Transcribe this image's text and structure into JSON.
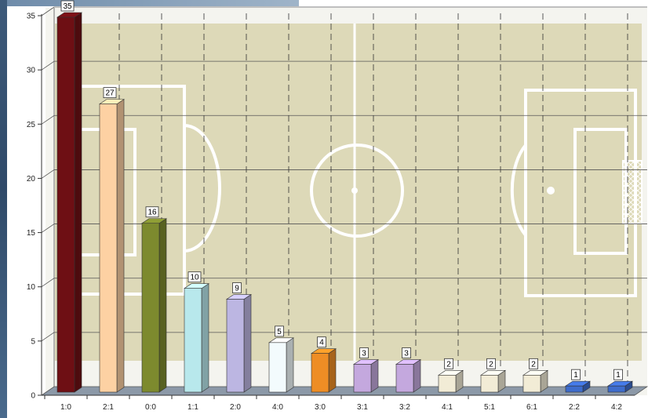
{
  "chart_data": {
    "type": "bar",
    "categories": [
      "1:0",
      "2:1",
      "0:0",
      "1:1",
      "2:0",
      "4:0",
      "3:0",
      "3:1",
      "3:2",
      "4:1",
      "5:1",
      "6:1",
      "2:2",
      "4:2"
    ],
    "values": [
      35,
      27,
      16,
      10,
      9,
      5,
      4,
      3,
      3,
      2,
      2,
      2,
      1,
      1
    ],
    "data_labels": [
      "35",
      "27",
      "16",
      "10",
      "9",
      "5",
      "4",
      "3",
      "3",
      "2",
      "2",
      "2",
      "1",
      "1"
    ],
    "colors": [
      "#6e0f14",
      "#fdd1a3",
      "#7d8a2e",
      "#b8e8ec",
      "#bcb6e2",
      "#f3fbfd",
      "#ee8d25",
      "#c4a8de",
      "#c4a8de",
      "#f2ecd6",
      "#f2ecd6",
      "#f2ecd6",
      "#3d6ccc",
      "#3d6ccc"
    ],
    "ylim": [
      0,
      35
    ],
    "yticks": [
      "0",
      "5",
      "10",
      "15",
      "20",
      "25",
      "30",
      "35"
    ],
    "title": "",
    "xlabel": "",
    "ylabel": "",
    "grid": true,
    "legend": "none",
    "background": "soccer-field"
  }
}
